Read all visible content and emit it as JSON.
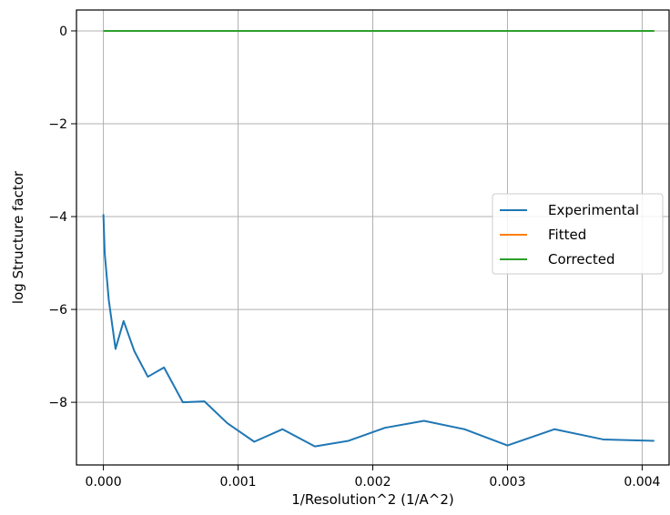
{
  "chart_data": {
    "type": "line",
    "xlabel": "1/Resolution^2 (1/A^2)",
    "ylabel": "log Structure factor",
    "xlim": [
      -0.0002,
      0.0042
    ],
    "ylim": [
      -9.35,
      0.45
    ],
    "grid": true,
    "legend_position": "center-right",
    "x_ticks": [
      {
        "value": 0.0,
        "label": "0.000"
      },
      {
        "value": 0.001,
        "label": "0.001"
      },
      {
        "value": 0.002,
        "label": "0.002"
      },
      {
        "value": 0.003,
        "label": "0.003"
      },
      {
        "value": 0.004,
        "label": "0.004"
      }
    ],
    "y_ticks": [
      {
        "value": 0,
        "label": "0"
      },
      {
        "value": -2,
        "label": "−2"
      },
      {
        "value": -4,
        "label": "−4"
      },
      {
        "value": -6,
        "label": "−6"
      },
      {
        "value": -8,
        "label": "−8"
      }
    ],
    "series": [
      {
        "name": "Experimental",
        "color": "#1f77b4",
        "x": [
          0.0,
          1e-05,
          4e-05,
          9e-05,
          0.00015,
          0.00023,
          0.00033,
          0.00045,
          0.00059,
          0.00075,
          0.00092,
          0.00112,
          0.00133,
          0.00157,
          0.00182,
          0.00209,
          0.00238,
          0.00268,
          0.003,
          0.00335,
          0.00371,
          0.00409
        ],
        "y": [
          -3.95,
          -4.8,
          -5.8,
          -6.85,
          -6.25,
          -6.9,
          -7.45,
          -7.25,
          -8.0,
          -7.98,
          -8.45,
          -8.85,
          -8.58,
          -8.95,
          -8.83,
          -8.55,
          -8.4,
          -8.58,
          -8.93,
          -8.58,
          -8.8,
          -8.83
        ]
      },
      {
        "name": "Fitted",
        "color": "#ff7f0e",
        "x": [
          0.0,
          0.00409
        ],
        "y": [
          0.0,
          0.0
        ]
      },
      {
        "name": "Corrected",
        "color": "#2ca02c",
        "x": [
          0.0,
          0.00409
        ],
        "y": [
          0.0,
          0.0
        ]
      }
    ]
  }
}
